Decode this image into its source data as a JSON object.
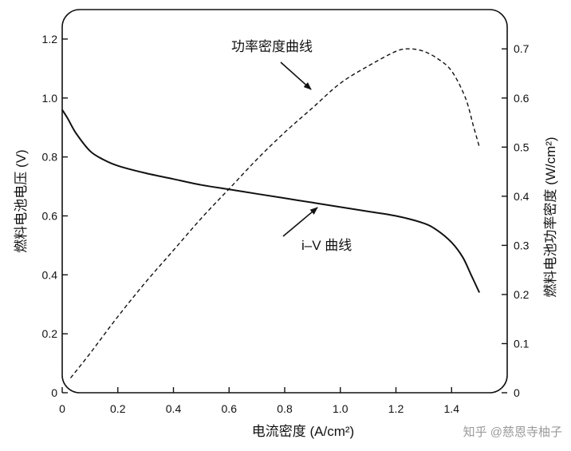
{
  "chart_data": {
    "type": "line",
    "xlabel": "电流密度 (A/cm²)",
    "ylabel_left": "燃料电池电压 (V)",
    "ylabel_right": "燃料电池功率密度 (W/cm²)",
    "xlim": [
      0,
      1.6
    ],
    "ylim_left": [
      0,
      1.3
    ],
    "ylim_right": [
      0,
      0.78
    ],
    "x_ticks": [
      "0",
      "0.2",
      "0.4",
      "0.6",
      "0.8",
      "1.0",
      "1.2",
      "1.4"
    ],
    "y_left_ticks": [
      "0",
      "0.2",
      "0.4",
      "0.6",
      "0.8",
      "1.0",
      "1.2"
    ],
    "y_right_ticks": [
      "0",
      "0.1",
      "0.2",
      "0.3",
      "0.4",
      "0.5",
      "0.6",
      "0.7"
    ],
    "grid": false,
    "series": [
      {
        "name": "i-V 曲线",
        "axis": "left",
        "style": "solid",
        "x": [
          0,
          0.02,
          0.05,
          0.1,
          0.15,
          0.2,
          0.3,
          0.4,
          0.5,
          0.6,
          0.7,
          0.8,
          0.9,
          1.0,
          1.1,
          1.2,
          1.3,
          1.35,
          1.4,
          1.44,
          1.47,
          1.5
        ],
        "values": [
          0.96,
          0.93,
          0.88,
          0.82,
          0.79,
          0.77,
          0.745,
          0.725,
          0.705,
          0.69,
          0.675,
          0.66,
          0.645,
          0.63,
          0.615,
          0.6,
          0.575,
          0.55,
          0.51,
          0.46,
          0.4,
          0.34
        ]
      },
      {
        "name": "功率密度曲线",
        "axis": "right",
        "style": "dashed",
        "x": [
          0.03,
          0.1,
          0.2,
          0.3,
          0.4,
          0.5,
          0.6,
          0.7,
          0.8,
          0.9,
          1.0,
          1.1,
          1.2,
          1.25,
          1.3,
          1.35,
          1.4,
          1.45,
          1.48,
          1.5
        ],
        "values": [
          0.03,
          0.08,
          0.155,
          0.225,
          0.29,
          0.355,
          0.415,
          0.475,
          0.53,
          0.58,
          0.63,
          0.665,
          0.695,
          0.7,
          0.695,
          0.68,
          0.655,
          0.6,
          0.54,
          0.5
        ]
      }
    ],
    "annotations": [
      {
        "text": "功率密度曲线",
        "target": "功率密度曲线"
      },
      {
        "text": "i–V 曲线",
        "target": "i-V 曲线"
      }
    ]
  },
  "watermark": "知乎 @慈恩寺柚子"
}
